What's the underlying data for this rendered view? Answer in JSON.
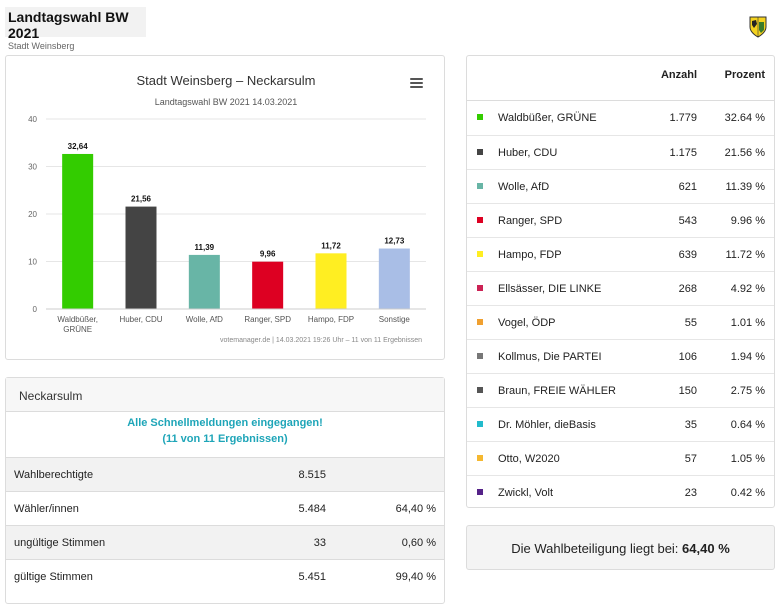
{
  "header": {
    "title": "Landtagswahl BW 2021",
    "subtitle": "Stadt Weinsberg",
    "crest_icon": "coat-of-arms-icon"
  },
  "chart_data": {
    "type": "bar",
    "title": "Stadt Weinsberg – Neckarsulm",
    "subtitle": "Landtagswahl BW 2021 14.03.2021",
    "categories": [
      "Waldbüßer, GRÜNE",
      "Huber, CDU",
      "Wolle, AfD",
      "Ranger, SPD",
      "Hampo, FDP",
      "Sonstige"
    ],
    "category_lines": [
      [
        "Waldbüßer,",
        "GRÜNE"
      ],
      [
        "Huber, CDU"
      ],
      [
        "Wolle, AfD"
      ],
      [
        "Ranger, SPD"
      ],
      [
        "Hampo, FDP"
      ],
      [
        "Sonstige"
      ]
    ],
    "values": [
      32.64,
      21.56,
      11.39,
      9.96,
      11.72,
      12.73
    ],
    "value_labels": [
      "32,64",
      "21,56",
      "11,39",
      "9,96",
      "11,72",
      "12,73"
    ],
    "colors": [
      "#33cc00",
      "#444444",
      "#68b5a6",
      "#dd0022",
      "#ffee22",
      "#a9bee6"
    ],
    "ylim": [
      0,
      40
    ],
    "yticks": [
      "0",
      "10",
      "20",
      "30",
      "40"
    ],
    "grid": true,
    "credits": "votemanager.de | 14.03.2021 19:26 Uhr – 11 von 11 Ergebnissen"
  },
  "info": {
    "heading": "Neckarsulm",
    "message_line1": "Alle Schnellmeldungen eingegangen!",
    "message_line2": "(11 von 11 Ergebnissen)",
    "rows": [
      {
        "label": "Wahlberechtigte",
        "value": "8.515",
        "percent": ""
      },
      {
        "label": "Wähler/innen",
        "value": "5.484",
        "percent": "64,40 %"
      },
      {
        "label": "ungültige Stimmen",
        "value": "33",
        "percent": "0,60 %"
      },
      {
        "label": "gültige Stimmen",
        "value": "5.451",
        "percent": "99,40 %"
      }
    ]
  },
  "results_table": {
    "col_count": "Anzahl",
    "col_percent": "Prozent",
    "rows": [
      {
        "name": "Waldbüßer, GRÜNE",
        "count": "1.779",
        "percent": "32.64 %",
        "color": "#33cc00"
      },
      {
        "name": "Huber, CDU",
        "count": "1.175",
        "percent": "21.56 %",
        "color": "#444444"
      },
      {
        "name": "Wolle, AfD",
        "count": "621",
        "percent": "11.39 %",
        "color": "#68b5a6"
      },
      {
        "name": "Ranger, SPD",
        "count": "543",
        "percent": "9.96 %",
        "color": "#dd0022"
      },
      {
        "name": "Hampo, FDP",
        "count": "639",
        "percent": "11.72 %",
        "color": "#ffee22"
      },
      {
        "name": "Ellsässer, DIE LINKE",
        "count": "268",
        "percent": "4.92 %",
        "color": "#cc2255"
      },
      {
        "name": "Vogel, ÖDP",
        "count": "55",
        "percent": "1.01 %",
        "color": "#f0a030"
      },
      {
        "name": "Kollmus, Die PARTEI",
        "count": "106",
        "percent": "1.94 %",
        "color": "#777777"
      },
      {
        "name": "Braun, FREIE WÄHLER",
        "count": "150",
        "percent": "2.75 %",
        "color": "#555555"
      },
      {
        "name": "Dr. Möhler, dieBasis",
        "count": "35",
        "percent": "0.64 %",
        "color": "#22bbcc"
      },
      {
        "name": "Otto, W2020",
        "count": "57",
        "percent": "1.05 %",
        "color": "#f5b830"
      },
      {
        "name": "Zwickl, Volt",
        "count": "23",
        "percent": "0.42 %",
        "color": "#552288"
      }
    ]
  },
  "turnout": {
    "text": "Die Wahlbeteiligung liegt bei:",
    "value": "64,40 %"
  }
}
